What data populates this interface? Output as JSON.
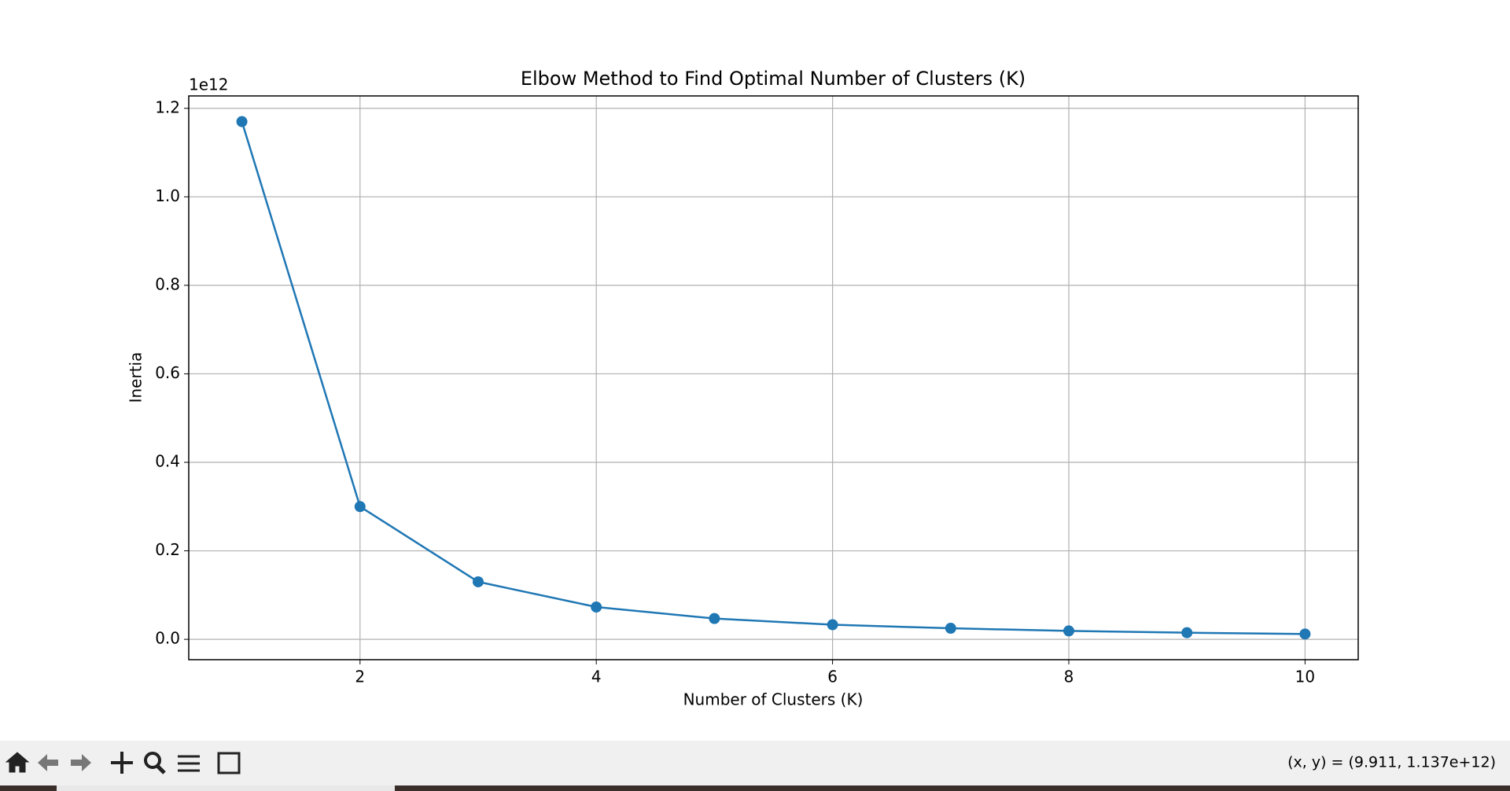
{
  "chart_data": {
    "type": "line",
    "title": "Elbow Method to Find Optimal Number of Clusters (K)",
    "x_label": "Number of Clusters (K)",
    "y_label": "Inertia",
    "y_offset_label": "1e12",
    "x": [
      1,
      2,
      3,
      4,
      5,
      6,
      7,
      8,
      9,
      10
    ],
    "series": [
      {
        "name": "Inertia",
        "color": "#1f77b4",
        "values": [
          1.17,
          0.3,
          0.13,
          0.073,
          0.047,
          0.033,
          0.025,
          0.019,
          0.015,
          0.012
        ]
      }
    ],
    "xlim": [
      0.55,
      10.45
    ],
    "ylim": [
      -0.046,
      1.228
    ],
    "xticks": [
      2,
      4,
      6,
      8,
      10
    ],
    "yticks": [
      {
        "value": 0,
        "label": "0.0"
      },
      0.2,
      0.4,
      0.6,
      0.8,
      {
        "value": 1,
        "label": "1.0"
      },
      1.2
    ],
    "grid": true,
    "marker": "o"
  },
  "status": {
    "coordinates": "(x, y) = (9.911, 1.137e+12)"
  }
}
